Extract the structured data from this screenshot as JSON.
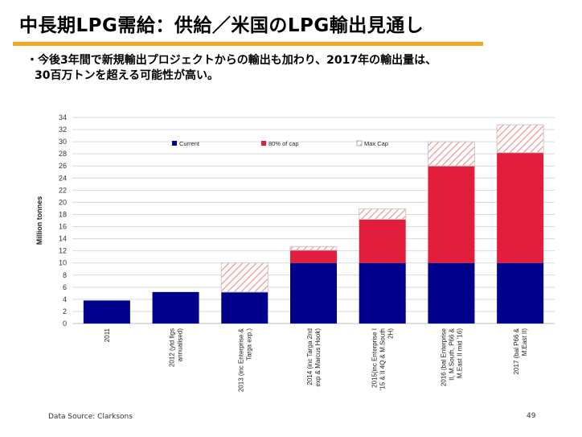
{
  "slide": {
    "title": "中長期LPG需給：供給／米国のLPG輸出見通し",
    "bullet_lines": [
      "・今後3年間で新規輸出プロジェクトからの輸出も加わり、2017年の輸出量は、",
      "30百万トンを超える可能性が高い。"
    ],
    "source": "Data Source: Clarksons",
    "page_number": "49"
  },
  "colors": {
    "current": "#00008b",
    "cap80": "#e31e3c",
    "maxcap_hatch": "#f08a8a",
    "title_rule": "#f5a623",
    "grid": "#d9d9d9"
  },
  "chart_data": {
    "type": "bar",
    "stacked": true,
    "categories": [
      "2011",
      "2012 (ytd figs annualised)",
      "2013 (inc Enterprise & Targa exp.)",
      "2014 (inc Targa 2nd exp & Marcus Hook)",
      "2015(inc Enterprise I '15 & II 4Q & M.South 2H)",
      "2016 (bal Enterprise II, M.South, P66 & M.East II mid '16)",
      "2017 (bal P66 & M.East II)"
    ],
    "category_lines": [
      [
        "2011"
      ],
      [
        "2012 (ytd figs",
        "annualised)"
      ],
      [
        "2013 (inc Enterprise &",
        "Targa exp.)"
      ],
      [
        "2014 (inc Targa 2nd",
        "exp & Marcus Hook)"
      ],
      [
        "2015(inc Enterprise I",
        "'15 & II 4Q & M.South",
        "2H)"
      ],
      [
        "2016 (bal Enterprise",
        "II, M.South, P66 &",
        "M.East II mid '16)"
      ],
      [
        "2017 (bal P66 &",
        "M.East II)"
      ]
    ],
    "series": [
      {
        "name": "Current",
        "values": [
          3.8,
          5.2,
          5.2,
          10,
          10,
          10,
          10
        ]
      },
      {
        "name": "80% of cap",
        "values": [
          0,
          0,
          0,
          2.1,
          7.2,
          16,
          18.2
        ]
      },
      {
        "name": "Max Cap",
        "values": [
          0,
          0,
          4.8,
          0.6,
          1.7,
          4,
          4.6
        ]
      }
    ],
    "ylabel": "Million tonnes",
    "xlabel": "",
    "ylim": [
      0,
      34
    ],
    "ytick_step": 2,
    "grid": true,
    "legend_position": "top-inside"
  }
}
